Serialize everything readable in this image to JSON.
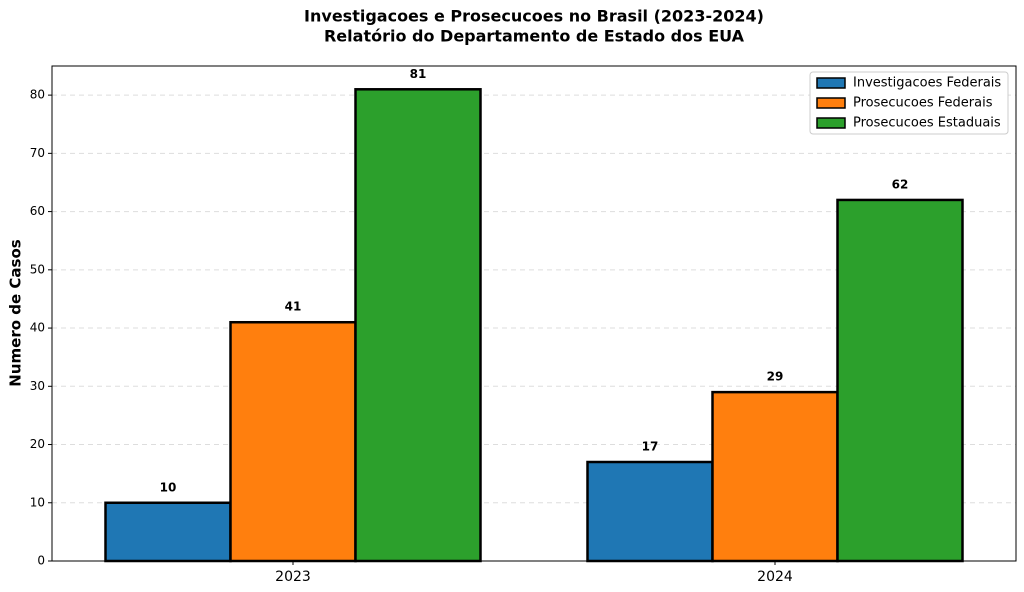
{
  "chart_data": {
    "type": "bar",
    "title": "Investigacoes e Prosecucoes no Brasil (2023-2024)",
    "subtitle": "Relatório do Departamento de Estado dos EUA",
    "y_label": "Numero de Casos",
    "categories": [
      "2023",
      "2024"
    ],
    "series": [
      {
        "name": "Investigacoes Federais",
        "color": "#1f77b4",
        "values": [
          10,
          17
        ]
      },
      {
        "name": "Prosecucoes Federais",
        "color": "#ff7f0e",
        "values": [
          41,
          29
        ]
      },
      {
        "name": "Prosecucoes Estaduais",
        "color": "#2ca02c",
        "values": [
          81,
          62
        ]
      }
    ],
    "ylim": [
      0,
      85
    ],
    "yticks": [
      0,
      10,
      20,
      30,
      40,
      50,
      60,
      70,
      80
    ],
    "grid": true,
    "legend": "upper-right"
  }
}
